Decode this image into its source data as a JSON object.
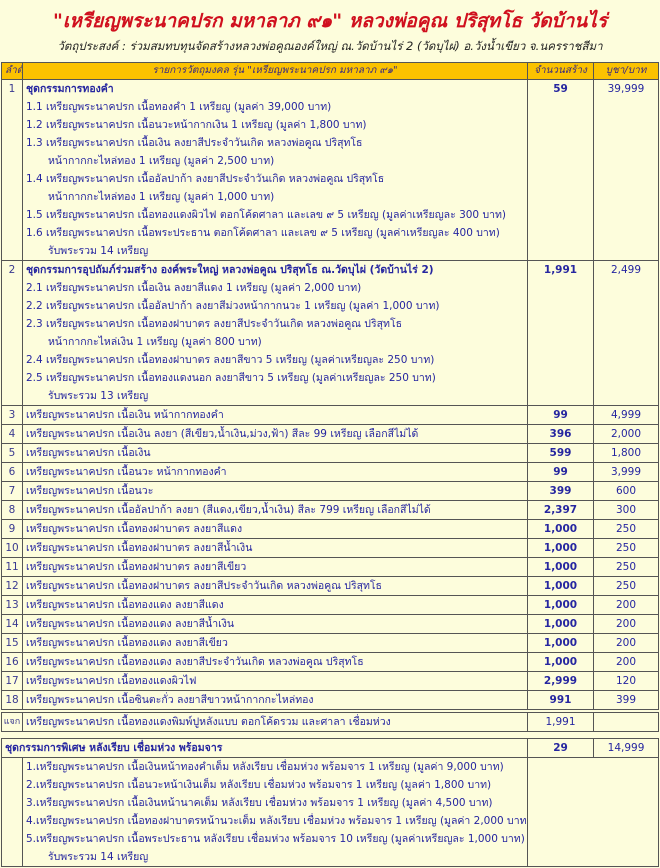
{
  "title": "\"เหรียญพระนาคปรก มหาลาภ ๙๑\"  หลวงพ่อคูณ ปริสุทโธ วัดบ้านไร่",
  "subtitle": "วัตถุประสงค์ : ร่วมสมทบทุนจัดสร้างหลวงพ่อคูณองค์ใหญ่ ณ.วัดบ้านไร่ 2 (วัดบุไผ่) อ.วังน้ำเขียว จ.นครราชสีมา",
  "colors": {
    "title": "#d0101e",
    "header_bg": "#fbc200",
    "text": "#2626a0",
    "background": "#fdfddc"
  },
  "table": {
    "headers": [
      "ลำดับ",
      "รายการวัตถุมงคล รุ่น \"เหรียญพระนาคปรก มหาลาภ ๙๑\"",
      "จำนวนสร้าง",
      "บูชา/บาท"
    ],
    "rows": [
      {
        "no": "1",
        "desc": "ชุดกรรมการทองคำ",
        "qty": "59",
        "price": "39,999",
        "lines": [
          "1.1 เหรียญพระนาคปรก เนื้อทองคำ 1 เหรียญ (มูลค่า 39,000 บาท)",
          "1.2 เหรียญพระนาคปรก เนื้อนวะหน้ากากเงิน 1 เหรียญ (มูลค่า 1,800 บาท)",
          "1.3 เหรียญพระนาคปรก เนื้อเงิน ลงยาสีประจำวันเกิด หลวงพ่อคูณ ปริสุทโธ",
          "หน้ากากกะไหล่ทอง 1 เหรียญ (มูลค่า 2,500 บาท)",
          "1.4 เหรียญพระนาคปรก เนื้ออัลปาก้า ลงยาสีประจำวันเกิด หลวงพ่อคูณ ปริสุทโธ",
          "หน้ากากกะไหล่ทอง 1 เหรียญ (มูลค่า 1,000 บาท)",
          "1.5 เหรียญพระนาคปรก เนื้อทองแดงผิวไฟ ตอกโค้ดศาลา และเลข ๙ 5 เหรียญ (มูลค่าเหรียญละ 300 บาท)",
          "1.6 เหรียญพระนาคปรก เนื้อพระประธาน ตอกโค้ดศาลา และเลข ๙ 5 เหรียญ (มูลค่าเหรียญละ 400 บาท)",
          "รับพระรวม 14 เหรียญ"
        ]
      },
      {
        "no": "2",
        "desc": "ชุดกรรมการอุปถัมภ์ร่วมสร้าง องค์พระใหญ่ หลวงพ่อคูณ ปริสุทโธ ณ.วัดบุไผ่ (วัดบ้านไร่ 2)",
        "qty": "1,991",
        "price": "2,499",
        "lines": [
          "2.1 เหรียญพระนาคปรก เนื้อเงิน ลงยาสีแดง 1 เหรียญ (มูลค่า 2,000 บาท)",
          "2.2 เหรียญพระนาคปรก เนื้ออัลปาก้า ลงยาสีม่วงหน้ากากนวะ 1 เหรียญ (มูลค่า 1,000 บาท)",
          "2.3 เหรียญพระนาคปรก เนื้อทองฝาบาตร ลงยาสีประจำวันเกิด หลวงพ่อคูณ ปริสุทโธ",
          "หน้ากากกะไหล่เงิน 1 เหรียญ (มูลค่า 800 บาท)",
          "2.4 เหรียญพระนาคปรก เนื้อทองฝาบาตร ลงยาสีขาว 5 เหรียญ (มูลค่าเหรียญละ 250 บาท)",
          "2.5 เหรียญพระนาคปรก เนื้อทองแดงนอก ลงยาสีขาว 5 เหรียญ (มูลค่าเหรียญละ 250 บาท)",
          "รับพระรวม 13 เหรียญ"
        ]
      },
      {
        "no": "3",
        "desc": "เหรียญพระนาคปรก เนื้อเงิน หน้ากากทองคำ",
        "qty": "99",
        "price": "4,999"
      },
      {
        "no": "4",
        "desc": "เหรียญพระนาคปรก เนื้อเงิน ลงยา (สีเขียว,น้ำเงิน,ม่วง,ฟ้า) สีละ 99 เหรียญ เลือกสีไม่ได้",
        "qty": "396",
        "price": "2,000"
      },
      {
        "no": "5",
        "desc": "เหรียญพระนาคปรก เนื้อเงิน",
        "qty": "599",
        "price": "1,800"
      },
      {
        "no": "6",
        "desc": "เหรียญพระนาคปรก เนื้อนวะ หน้ากากทองคำ",
        "qty": "99",
        "price": "3,999"
      },
      {
        "no": "7",
        "desc": "เหรียญพระนาคปรก เนื้อนวะ",
        "qty": "399",
        "price": "600"
      },
      {
        "no": "8",
        "desc": "เหรียญพระนาคปรก เนื้ออัลปาก้า ลงยา (สีแดง,เขียว,น้ำเงิน) สีละ 799 เหรียญ เลือกสีไม่ได้",
        "qty": "2,397",
        "price": "300"
      },
      {
        "no": "9",
        "desc": "เหรียญพระนาคปรก เนื้อทองฝาบาตร ลงยาสีแดง",
        "qty": "1,000",
        "price": "250"
      },
      {
        "no": "10",
        "desc": "เหรียญพระนาคปรก เนื้อทองฝาบาตร ลงยาสีน้ำเงิน",
        "qty": "1,000",
        "price": "250"
      },
      {
        "no": "11",
        "desc": "เหรียญพระนาคปรก เนื้อทองฝาบาตร ลงยาสีเขียว",
        "qty": "1,000",
        "price": "250"
      },
      {
        "no": "12",
        "desc": "เหรียญพระนาคปรก เนื้อทองฝาบาตร ลงยาสีประจำวันเกิด หลวงพ่อคูณ ปริสุทโธ",
        "qty": "1,000",
        "price": "250"
      },
      {
        "no": "13",
        "desc": "เหรียญพระนาคปรก เนื้อทองแดง ลงยาสีแดง",
        "qty": "1,000",
        "price": "200"
      },
      {
        "no": "14",
        "desc": "เหรียญพระนาคปรก เนื้อทองแดง ลงยาสีน้ำเงิน",
        "qty": "1,000",
        "price": "200"
      },
      {
        "no": "15",
        "desc": "เหรียญพระนาคปรก เนื้อทองแดง ลงยาสีเขียว",
        "qty": "1,000",
        "price": "200"
      },
      {
        "no": "16",
        "desc": "เหรียญพระนาคปรก เนื้อทองแดง ลงยาสีประจำวันเกิด หลวงพ่อคูณ ปริสุทโธ",
        "qty": "1,000",
        "price": "200"
      },
      {
        "no": "17",
        "desc": "เหรียญพระนาคปรก เนื้อทองแดงผิวไฟ",
        "qty": "2,999",
        "price": "120"
      },
      {
        "no": "18",
        "desc": "เหรียญพระนาคปรก เนื้อซินตะกั่ว ลงยาสีขาวหน้ากากกะไหล่ทอง",
        "qty": "991",
        "price": "399"
      }
    ]
  },
  "giveaway": {
    "no": "แจก",
    "desc": "เหรียญพระนาคปรก เนื้อทองแดงพิมพ์ปูหลังแบบ ตอกโค้ดรวม และศาลา เชื่อมห่วง",
    "qty": "1,991",
    "price": ""
  },
  "special": {
    "desc": "ชุดกรรมการพิเศษ หลังเรียบ เชื่อมห่วง พร้อมจาร",
    "qty": "29",
    "price": "14,999",
    "lines": [
      "1.เหรียญพระนาคปรก เนื้อเงินหน้าทองคำเต็ม หลังเรียบ เชื่อมห่วง พร้อมจาร 1 เหรียญ (มูลค่า 9,000 บาท)",
      "2.เหรียญพระนาคปรก เนื้อนวะหน้าเงินเต็ม หลังเรียบ เชื่อมห่วง พร้อมจาร 1 เหรียญ (มูลค่า 1,800 บาท)",
      "3.เหรียญพระนาคปรก เนื้อเงินหน้านาคเต็ม หลังเรียบ เชื่อมห่วง พร้อมจาร 1 เหรียญ (มูลค่า 4,500 บาท)",
      "4.เหรียญพระนาคปรก เนื้อทองฝาบาตรหน้านวะเต็ม หลังเรียบ เชื่อมห่วง พร้อมจาร 1 เหรียญ (มูลค่า 2,000 บาท)",
      "5.เหรียญพระนาคปรก เนื้อพระประธาน หลังเรียบ เชื่อมห่วง พร้อมจาร 10 เหรียญ (มูลค่าเหรียญละ 1,000 บาท)",
      "รับพระรวม 14 เหรียญ"
    ]
  }
}
